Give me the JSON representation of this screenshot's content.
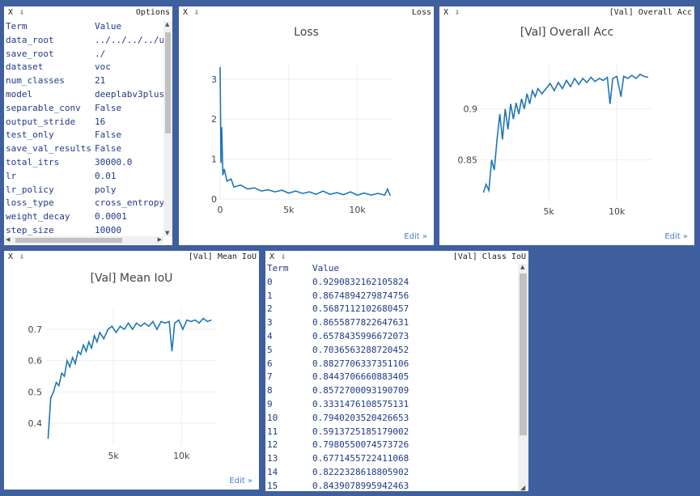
{
  "options_pane": {
    "controls": "X ⇩",
    "title": "Options",
    "header": {
      "term": "Term",
      "value": "Value"
    },
    "rows": [
      {
        "term": "data_root",
        "value": "../../../../u"
      },
      {
        "term": "save_root",
        "value": "./"
      },
      {
        "term": "dataset",
        "value": "voc"
      },
      {
        "term": "num_classes",
        "value": "21"
      },
      {
        "term": "model",
        "value": "deeplabv3plus"
      },
      {
        "term": "separable_conv",
        "value": "False"
      },
      {
        "term": "output_stride",
        "value": "16"
      },
      {
        "term": "test_only",
        "value": "False"
      },
      {
        "term": "save_val_results",
        "value": "False"
      },
      {
        "term": "total_itrs",
        "value": "30000.0"
      },
      {
        "term": "lr",
        "value": "0.01"
      },
      {
        "term": "lr_policy",
        "value": "poly"
      },
      {
        "term": "loss_type",
        "value": "cross_entropy"
      },
      {
        "term": "weight_decay",
        "value": "0.0001"
      },
      {
        "term": "step_size",
        "value": "10000"
      }
    ]
  },
  "loss_pane": {
    "controls": "X ⇩",
    "title": "Loss",
    "edit": "Edit »",
    "chart_data": {
      "type": "line",
      "title": "Loss",
      "xlim": [
        0,
        12500
      ],
      "ylim": [
        0,
        3.4
      ],
      "x_ticks": [
        {
          "v": 0,
          "label": "0"
        },
        {
          "v": 5000,
          "label": "5k"
        },
        {
          "v": 10000,
          "label": "10k"
        }
      ],
      "y_ticks": [
        {
          "v": 0,
          "label": "0"
        },
        {
          "v": 1,
          "label": "1"
        },
        {
          "v": 2,
          "label": "2"
        },
        {
          "v": 3,
          "label": "3"
        }
      ],
      "points": [
        [
          0,
          3.3
        ],
        [
          30,
          2.2
        ],
        [
          60,
          0.9
        ],
        [
          120,
          1.8
        ],
        [
          200,
          0.6
        ],
        [
          300,
          0.75
        ],
        [
          500,
          0.45
        ],
        [
          800,
          0.5
        ],
        [
          1000,
          0.3
        ],
        [
          1500,
          0.35
        ],
        [
          2000,
          0.25
        ],
        [
          2500,
          0.28
        ],
        [
          3000,
          0.2
        ],
        [
          3500,
          0.23
        ],
        [
          4000,
          0.18
        ],
        [
          4500,
          0.22
        ],
        [
          5000,
          0.15
        ],
        [
          5500,
          0.2
        ],
        [
          6000,
          0.14
        ],
        [
          6500,
          0.18
        ],
        [
          7000,
          0.12
        ],
        [
          7500,
          0.2
        ],
        [
          8000,
          0.12
        ],
        [
          8500,
          0.16
        ],
        [
          9000,
          0.11
        ],
        [
          9500,
          0.18
        ],
        [
          10000,
          0.1
        ],
        [
          10500,
          0.15
        ],
        [
          11000,
          0.1
        ],
        [
          11500,
          0.14
        ],
        [
          12000,
          0.1
        ],
        [
          12200,
          0.25
        ],
        [
          12400,
          0.08
        ]
      ]
    }
  },
  "acc_pane": {
    "controls": "X ⇩",
    "title": "[Val] Overall Acc",
    "edit": "Edit »",
    "chart_data": {
      "type": "line",
      "title": "[Val] Overall Acc",
      "xlim": [
        0,
        12600
      ],
      "ylim": [
        0.81,
        0.945
      ],
      "x_ticks": [
        {
          "v": 5000,
          "label": "5k"
        },
        {
          "v": 10000,
          "label": "10k"
        }
      ],
      "y_ticks": [
        {
          "v": 0.85,
          "label": "0.85"
        },
        {
          "v": 0.9,
          "label": "0.9"
        }
      ],
      "points": [
        [
          200,
          0.818
        ],
        [
          400,
          0.826
        ],
        [
          600,
          0.82
        ],
        [
          800,
          0.85
        ],
        [
          1000,
          0.84
        ],
        [
          1200,
          0.87
        ],
        [
          1400,
          0.895
        ],
        [
          1600,
          0.87
        ],
        [
          1800,
          0.9
        ],
        [
          2000,
          0.88
        ],
        [
          2200,
          0.905
        ],
        [
          2400,
          0.89
        ],
        [
          2600,
          0.906
        ],
        [
          2800,
          0.895
        ],
        [
          3000,
          0.91
        ],
        [
          3200,
          0.9
        ],
        [
          3400,
          0.915
        ],
        [
          3600,
          0.905
        ],
        [
          3800,
          0.918
        ],
        [
          4000,
          0.912
        ],
        [
          4200,
          0.92
        ],
        [
          4500,
          0.915
        ],
        [
          4800,
          0.92
        ],
        [
          5100,
          0.925
        ],
        [
          5400,
          0.918
        ],
        [
          5700,
          0.926
        ],
        [
          6000,
          0.92
        ],
        [
          6300,
          0.928
        ],
        [
          6600,
          0.922
        ],
        [
          6900,
          0.93
        ],
        [
          7200,
          0.924
        ],
        [
          7500,
          0.93
        ],
        [
          7800,
          0.926
        ],
        [
          8100,
          0.931
        ],
        [
          8400,
          0.927
        ],
        [
          8700,
          0.93
        ],
        [
          9000,
          0.928
        ],
        [
          9300,
          0.931
        ],
        [
          9500,
          0.905
        ],
        [
          9700,
          0.93
        ],
        [
          10000,
          0.932
        ],
        [
          10300,
          0.912
        ],
        [
          10500,
          0.932
        ],
        [
          10800,
          0.93
        ],
        [
          11100,
          0.933
        ],
        [
          11400,
          0.93
        ],
        [
          11700,
          0.934
        ],
        [
          12000,
          0.932
        ],
        [
          12300,
          0.931
        ]
      ]
    }
  },
  "miou_pane": {
    "controls": "X ⇩",
    "title": "[Val] Mean IoU",
    "edit": "Edit »",
    "chart_data": {
      "type": "line",
      "title": "[Val] Mean IoU",
      "xlim": [
        0,
        12600
      ],
      "ylim": [
        0.33,
        0.77
      ],
      "x_ticks": [
        {
          "v": 5000,
          "label": "5k"
        },
        {
          "v": 10000,
          "label": "10k"
        }
      ],
      "y_ticks": [
        {
          "v": 0.4,
          "label": "0.4"
        },
        {
          "v": 0.5,
          "label": "0.5"
        },
        {
          "v": 0.6,
          "label": "0.6"
        },
        {
          "v": 0.7,
          "label": "0.7"
        }
      ],
      "points": [
        [
          200,
          0.35
        ],
        [
          400,
          0.48
        ],
        [
          600,
          0.5
        ],
        [
          800,
          0.53
        ],
        [
          1000,
          0.52
        ],
        [
          1200,
          0.56
        ],
        [
          1400,
          0.55
        ],
        [
          1600,
          0.6
        ],
        [
          1800,
          0.58
        ],
        [
          2000,
          0.61
        ],
        [
          2200,
          0.59
        ],
        [
          2400,
          0.63
        ],
        [
          2600,
          0.62
        ],
        [
          2800,
          0.65
        ],
        [
          3000,
          0.63
        ],
        [
          3200,
          0.66
        ],
        [
          3400,
          0.64
        ],
        [
          3600,
          0.68
        ],
        [
          3800,
          0.66
        ],
        [
          4000,
          0.69
        ],
        [
          4300,
          0.67
        ],
        [
          4600,
          0.7
        ],
        [
          4900,
          0.71
        ],
        [
          5200,
          0.69
        ],
        [
          5500,
          0.71
        ],
        [
          5800,
          0.7
        ],
        [
          6100,
          0.72
        ],
        [
          6400,
          0.7
        ],
        [
          6700,
          0.72
        ],
        [
          7000,
          0.71
        ],
        [
          7300,
          0.72
        ],
        [
          7600,
          0.71
        ],
        [
          7900,
          0.725
        ],
        [
          8200,
          0.7
        ],
        [
          8500,
          0.725
        ],
        [
          8800,
          0.72
        ],
        [
          9100,
          0.725
        ],
        [
          9300,
          0.63
        ],
        [
          9500,
          0.72
        ],
        [
          9800,
          0.73
        ],
        [
          10100,
          0.7
        ],
        [
          10400,
          0.73
        ],
        [
          10700,
          0.725
        ],
        [
          11000,
          0.73
        ],
        [
          11300,
          0.72
        ],
        [
          11600,
          0.735
        ],
        [
          11900,
          0.725
        ],
        [
          12200,
          0.73
        ]
      ]
    }
  },
  "class_iou_pane": {
    "controls": "X ⇩",
    "title": "[Val] Class IoU",
    "header": {
      "term": "Term",
      "value": "Value"
    },
    "rows": [
      {
        "term": "0",
        "value": "0.9290832162105824"
      },
      {
        "term": "1",
        "value": "0.8674894279874756"
      },
      {
        "term": "2",
        "value": "0.5687112102680457"
      },
      {
        "term": "3",
        "value": "0.8655877822647631"
      },
      {
        "term": "4",
        "value": "0.6578435996672073"
      },
      {
        "term": "5",
        "value": "0.7036563288720452"
      },
      {
        "term": "6",
        "value": "0.8827706337351106"
      },
      {
        "term": "7",
        "value": "0.8443706660883405"
      },
      {
        "term": "8",
        "value": "0.8572700093190709"
      },
      {
        "term": "9",
        "value": "0.3331476108575131"
      },
      {
        "term": "10",
        "value": "0.7940203520426653"
      },
      {
        "term": "11",
        "value": "0.5913725185179002"
      },
      {
        "term": "12",
        "value": "0.7980550074573726"
      },
      {
        "term": "13",
        "value": "0.6771455722411068"
      },
      {
        "term": "14",
        "value": "0.8222328618805902"
      },
      {
        "term": "15",
        "value": "0.8439078995942463"
      }
    ]
  },
  "colors": {
    "line": "#1f77b4",
    "grid": "#eeeeee",
    "text": "#444444"
  }
}
